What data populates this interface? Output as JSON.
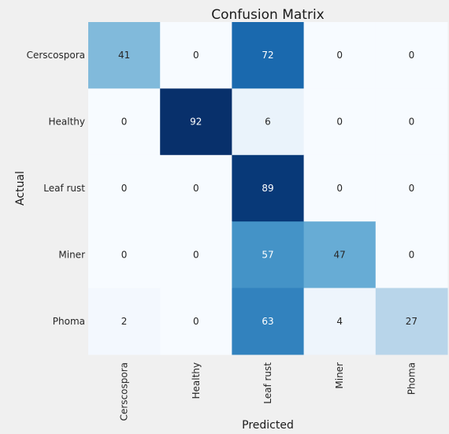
{
  "chart_data": {
    "type": "heatmap",
    "title": "Confusion Matrix",
    "xlabel": "Predicted",
    "ylabel": "Actual",
    "x_categories": [
      "Cerscospora",
      "Healthy",
      "Leaf rust",
      "Miner",
      "Phoma"
    ],
    "y_categories": [
      "Cerscospora",
      "Healthy",
      "Leaf rust",
      "Miner",
      "Phoma"
    ],
    "values": [
      [
        41,
        0,
        72,
        0,
        0
      ],
      [
        0,
        92,
        6,
        0,
        0
      ],
      [
        0,
        0,
        89,
        0,
        0
      ],
      [
        0,
        0,
        57,
        47,
        0
      ],
      [
        2,
        0,
        63,
        4,
        27
      ]
    ],
    "colormap": "Blues",
    "color_range": [
      0,
      92
    ],
    "grid": false,
    "legend": "none"
  }
}
